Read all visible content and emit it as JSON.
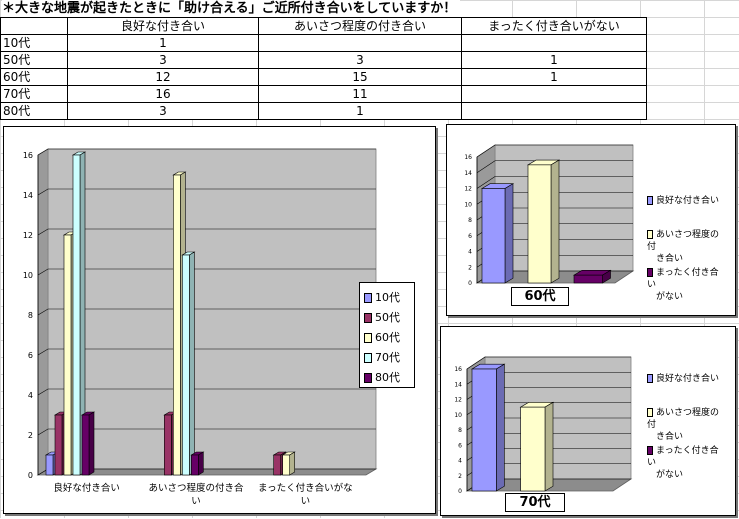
{
  "sheet": {
    "title": "＊大きな地震が起きたときに「助け合える」ご近所付き合いをしていますか！",
    "headers": [
      "",
      "良好な付き合い",
      "あいさつ程度の付き合い",
      "まったく付き合いがない"
    ],
    "rows": [
      {
        "label": "10代",
        "c1": "1",
        "c2": "",
        "c3": ""
      },
      {
        "label": "50代",
        "c1": "3",
        "c2": "3",
        "c3": "1"
      },
      {
        "label": "60代",
        "c1": "12",
        "c2": "15",
        "c3": "1"
      },
      {
        "label": "70代",
        "c1": "16",
        "c2": "11",
        "c3": ""
      },
      {
        "label": "80代",
        "c1": "3",
        "c2": "1",
        "c3": ""
      }
    ]
  },
  "colors": {
    "10代": "#9999ff",
    "50代": "#993366",
    "60代": "#ffffcc",
    "70代": "#ccffff",
    "80代": "#660066",
    "wall": "#c0c0c0"
  },
  "chart_data": [
    {
      "type": "bar",
      "categories": [
        "良好な付き合い",
        "あいさつ程度の付き合い",
        "まったく付き合いがない"
      ],
      "category_display": [
        [
          "良好な付き合い"
        ],
        [
          "あいさつ程度の付き合",
          "い"
        ],
        [
          "まったく付き合いがな",
          "い"
        ]
      ],
      "series": [
        {
          "name": "10代",
          "values": [
            1,
            0,
            0
          ]
        },
        {
          "name": "50代",
          "values": [
            3,
            3,
            1
          ]
        },
        {
          "name": "60代",
          "values": [
            12,
            15,
            1
          ]
        },
        {
          "name": "70代",
          "values": [
            16,
            11,
            0
          ]
        },
        {
          "name": "80代",
          "values": [
            3,
            1,
            0
          ]
        }
      ],
      "ylim": [
        0,
        16
      ],
      "yticks": [
        0,
        2,
        4,
        6,
        8,
        10,
        12,
        14,
        16
      ],
      "grid": true,
      "legend_position": "right"
    },
    {
      "type": "bar",
      "title": "60代",
      "categories": [
        "良好な付き合い",
        "あいさつ程度の付き合い",
        "まったく付き合いがない"
      ],
      "values": [
        12,
        15,
        1
      ],
      "ylim": [
        0,
        16
      ],
      "yticks": [
        0,
        2,
        4,
        6,
        8,
        10,
        12,
        14,
        16
      ],
      "legend_position": "right",
      "legend": [
        [
          "良好な付き合い"
        ],
        [
          "あいさつ程度の付",
          "き合い"
        ],
        [
          "まったく付き合い",
          "がない"
        ]
      ]
    },
    {
      "type": "bar",
      "title": "70代",
      "categories": [
        "良好な付き合い",
        "あいさつ程度の付き合い",
        "まったく付き合いがない"
      ],
      "values": [
        16,
        11,
        0
      ],
      "ylim": [
        0,
        16
      ],
      "yticks": [
        0,
        2,
        4,
        6,
        8,
        10,
        12,
        14,
        16
      ],
      "legend_position": "right",
      "legend": [
        [
          "良好な付き合い"
        ],
        [
          "あいさつ程度の付",
          "き合い"
        ],
        [
          "まったく付き合い",
          "がない"
        ]
      ]
    }
  ]
}
